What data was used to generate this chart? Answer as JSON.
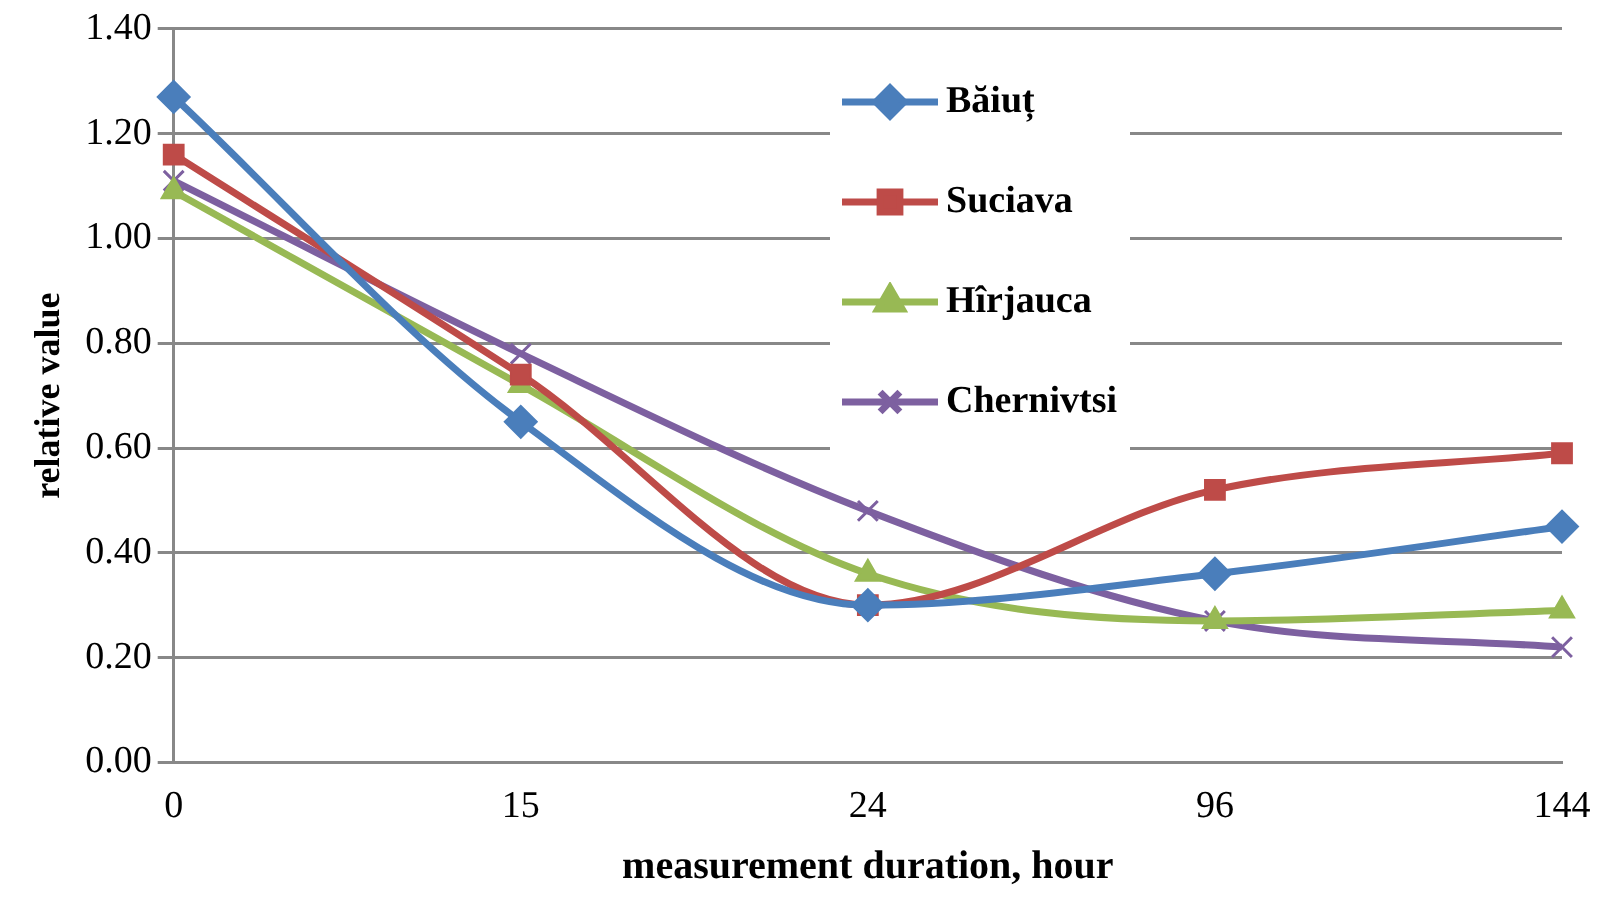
{
  "chart_data": {
    "type": "line",
    "xlabel": "measurement duration, hour",
    "ylabel": "relative value",
    "categories": [
      "0",
      "15",
      "24",
      "96",
      "144"
    ],
    "series": [
      {
        "name": "Băiuț",
        "color": "#4a7ebb",
        "marker": "diamond",
        "values": [
          1.27,
          0.65,
          0.3,
          0.36,
          0.45
        ]
      },
      {
        "name": "Suciava",
        "color": "#be4b48",
        "marker": "square",
        "values": [
          1.16,
          0.74,
          0.3,
          0.52,
          0.59
        ]
      },
      {
        "name": "Hîrjauca",
        "color": "#98b954",
        "marker": "triangle",
        "values": [
          1.09,
          0.72,
          0.36,
          0.27,
          0.29
        ]
      },
      {
        "name": "Chernivtsi",
        "color": "#7d60a0",
        "marker": "cross",
        "values": [
          1.11,
          0.78,
          0.48,
          0.27,
          0.22
        ]
      }
    ],
    "ylim": [
      0,
      1.4
    ],
    "yticks": [
      {
        "value": 0,
        "label": "0.00"
      },
      {
        "value": 0.2,
        "label": "0.20"
      },
      {
        "value": 0.4,
        "label": "0.40"
      },
      {
        "value": 0.6,
        "label": "0.60"
      },
      {
        "value": 0.8,
        "label": "0.80"
      },
      {
        "value": 1,
        "label": "1.00"
      },
      {
        "value": 1.2,
        "label": "1.20"
      },
      {
        "value": 1.4,
        "label": "1.40"
      }
    ],
    "grid": "y",
    "legend": "top right",
    "line_style": "solid"
  }
}
